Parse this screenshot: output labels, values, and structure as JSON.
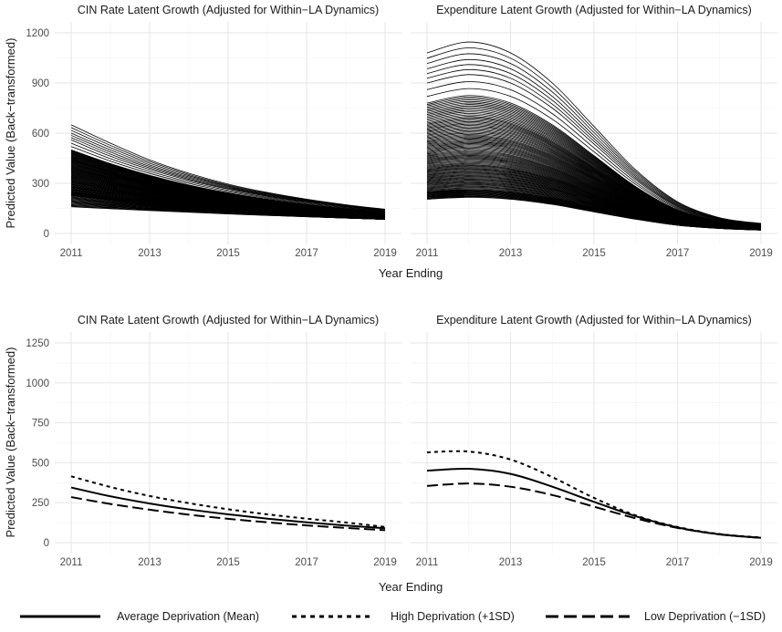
{
  "figure": {
    "shared_xlabel": "Year Ending",
    "shared_ylabel": "Predicted Value (Back−transformed)"
  },
  "legend": {
    "items": [
      {
        "label": "Average Deprivation (Mean)",
        "dash": "solid"
      },
      {
        "label": "High Deprivation (+1SD)",
        "dash": "dotted"
      },
      {
        "label": "Low Deprivation (−1SD)",
        "dash": "dashed"
      }
    ],
    "position": "bottom"
  },
  "chart_data": [
    {
      "type": "line",
      "title": "CIN Rate Latent Growth (Adjusted for Within−LA Dynamics)",
      "xlabel": "Year Ending",
      "ylabel": "Predicted Value (Back−transformed)",
      "xlim": [
        2011,
        2019
      ],
      "ylim": [
        0,
        1200
      ],
      "xticks": [
        2011,
        2013,
        2015,
        2017,
        2019
      ],
      "yticks": [
        0,
        300,
        600,
        900,
        1200
      ],
      "grid": true,
      "color": "#000000",
      "curves": "one line per local authority, roughly 150 lines",
      "x": [
        2011,
        2012,
        2013,
        2014,
        2015,
        2016,
        2017,
        2018,
        2019
      ],
      "series": [
        {
          "values": [
            650,
            540,
            440,
            360,
            295,
            245,
            205,
            172,
            145
          ]
        },
        {
          "values": [
            600,
            500,
            410,
            338,
            280,
            233,
            196,
            166,
            140
          ]
        },
        {
          "values": [
            560,
            462,
            383,
            318,
            265,
            222,
            188,
            160,
            137
          ]
        },
        {
          "values": [
            500,
            418,
            348,
            290,
            243,
            205,
            174,
            149,
            128
          ]
        },
        {
          "values": [
            450,
            378,
            317,
            266,
            224,
            190,
            162,
            139,
            120
          ]
        },
        {
          "values": [
            400,
            338,
            286,
            241,
            204,
            174,
            149,
            129,
            112
          ]
        },
        {
          "values": [
            350,
            298,
            254,
            216,
            184,
            158,
            137,
            119,
            104
          ]
        },
        {
          "values": [
            300,
            258,
            222,
            191,
            164,
            142,
            124,
            109,
            96
          ]
        },
        {
          "values": [
            250,
            218,
            190,
            166,
            145,
            127,
            112,
            99,
            88
          ]
        },
        {
          "values": [
            225,
            198,
            174,
            153,
            135,
            119,
            106,
            94,
            84
          ]
        },
        {
          "values": [
            160,
            148,
            137,
            127,
            117,
            108,
            100,
            92,
            85
          ]
        }
      ]
    },
    {
      "type": "line",
      "title": "Expenditure Latent Growth (Adjusted for Within−LA Dynamics)",
      "xlabel": "Year Ending",
      "ylabel": "Predicted Value (Back−transformed)",
      "xlim": [
        2011,
        2019
      ],
      "ylim": [
        0,
        1200
      ],
      "xticks": [
        2011,
        2013,
        2015,
        2017,
        2019
      ],
      "yticks": [
        0,
        300,
        600,
        900,
        1200
      ],
      "grid": true,
      "color": "#000000",
      "curves": "one line per local authority, roughly 150 lines",
      "x": [
        2011,
        2012,
        2013,
        2014,
        2015,
        2016,
        2017,
        2018,
        2019
      ],
      "series": [
        {
          "values": [
            1080,
            1145,
            1080,
            900,
            640,
            380,
            190,
            95,
            60
          ]
        },
        {
          "values": [
            985,
            1040,
            985,
            820,
            585,
            350,
            175,
            88,
            55
          ]
        },
        {
          "values": [
            900,
            950,
            900,
            750,
            535,
            320,
            160,
            82,
            50
          ]
        },
        {
          "values": [
            780,
            825,
            780,
            650,
            465,
            280,
            142,
            73,
            45
          ]
        },
        {
          "values": [
            660,
            700,
            660,
            550,
            395,
            240,
            122,
            64,
            40
          ]
        },
        {
          "values": [
            560,
            592,
            560,
            468,
            337,
            206,
            106,
            56,
            35
          ]
        },
        {
          "values": [
            470,
            497,
            470,
            393,
            284,
            175,
            91,
            49,
            31
          ]
        },
        {
          "values": [
            390,
            412,
            390,
            327,
            237,
            148,
            78,
            43,
            28
          ]
        },
        {
          "values": [
            320,
            338,
            320,
            269,
            196,
            124,
            67,
            38,
            25
          ]
        },
        {
          "values": [
            250,
            264,
            250,
            211,
            155,
            100,
            56,
            33,
            22
          ]
        },
        {
          "values": [
            205,
            216,
            205,
            174,
            129,
            85,
            49,
            30,
            20
          ]
        }
      ]
    },
    {
      "type": "line",
      "title": "CIN Rate Latent Growth (Adjusted for Within−LA Dynamics)",
      "xlabel": "Year Ending",
      "ylabel": "Predicted Value (Back−transformed)",
      "xlim": [
        2011,
        2019
      ],
      "ylim": [
        0,
        1250
      ],
      "xticks": [
        2011,
        2013,
        2015,
        2017,
        2019
      ],
      "yticks": [
        0,
        250,
        500,
        750,
        1000,
        1250
      ],
      "grid": true,
      "color": "#000000",
      "x": [
        2011,
        2012,
        2013,
        2014,
        2015,
        2016,
        2017,
        2018,
        2019
      ],
      "series": [
        {
          "name": "Average Deprivation (Mean)",
          "dash": "solid",
          "values": [
            345,
            290,
            245,
            208,
            177,
            150,
            127,
            107,
            90
          ]
        },
        {
          "name": "High Deprivation (+1SD)",
          "dash": "dotted",
          "values": [
            415,
            348,
            292,
            247,
            209,
            177,
            150,
            126,
            98
          ]
        },
        {
          "name": "Low Deprivation (−1SD)",
          "dash": "dashed",
          "values": [
            285,
            242,
            206,
            175,
            149,
            127,
            108,
            92,
            78
          ]
        }
      ]
    },
    {
      "type": "line",
      "title": "Expenditure Latent Growth (Adjusted for Within−LA Dynamics)",
      "xlabel": "Year Ending",
      "ylabel": "Predicted Value (Back−transformed)",
      "xlim": [
        2011,
        2019
      ],
      "ylim": [
        0,
        1250
      ],
      "xticks": [
        2011,
        2013,
        2015,
        2017,
        2019
      ],
      "yticks": [
        0,
        250,
        500,
        750,
        1000,
        1250
      ],
      "grid": true,
      "color": "#000000",
      "x": [
        2011,
        2012,
        2013,
        2014,
        2015,
        2016,
        2017,
        2018,
        2019
      ],
      "series": [
        {
          "name": "Average Deprivation (Mean)",
          "dash": "solid",
          "values": [
            450,
            462,
            430,
            350,
            255,
            165,
            95,
            52,
            30
          ]
        },
        {
          "name": "High Deprivation (+1SD)",
          "dash": "dotted",
          "values": [
            565,
            570,
            520,
            410,
            280,
            170,
            98,
            54,
            32
          ]
        },
        {
          "name": "Low Deprivation (−1SD)",
          "dash": "dashed",
          "values": [
            355,
            370,
            350,
            298,
            225,
            152,
            92,
            52,
            30
          ]
        }
      ]
    }
  ]
}
